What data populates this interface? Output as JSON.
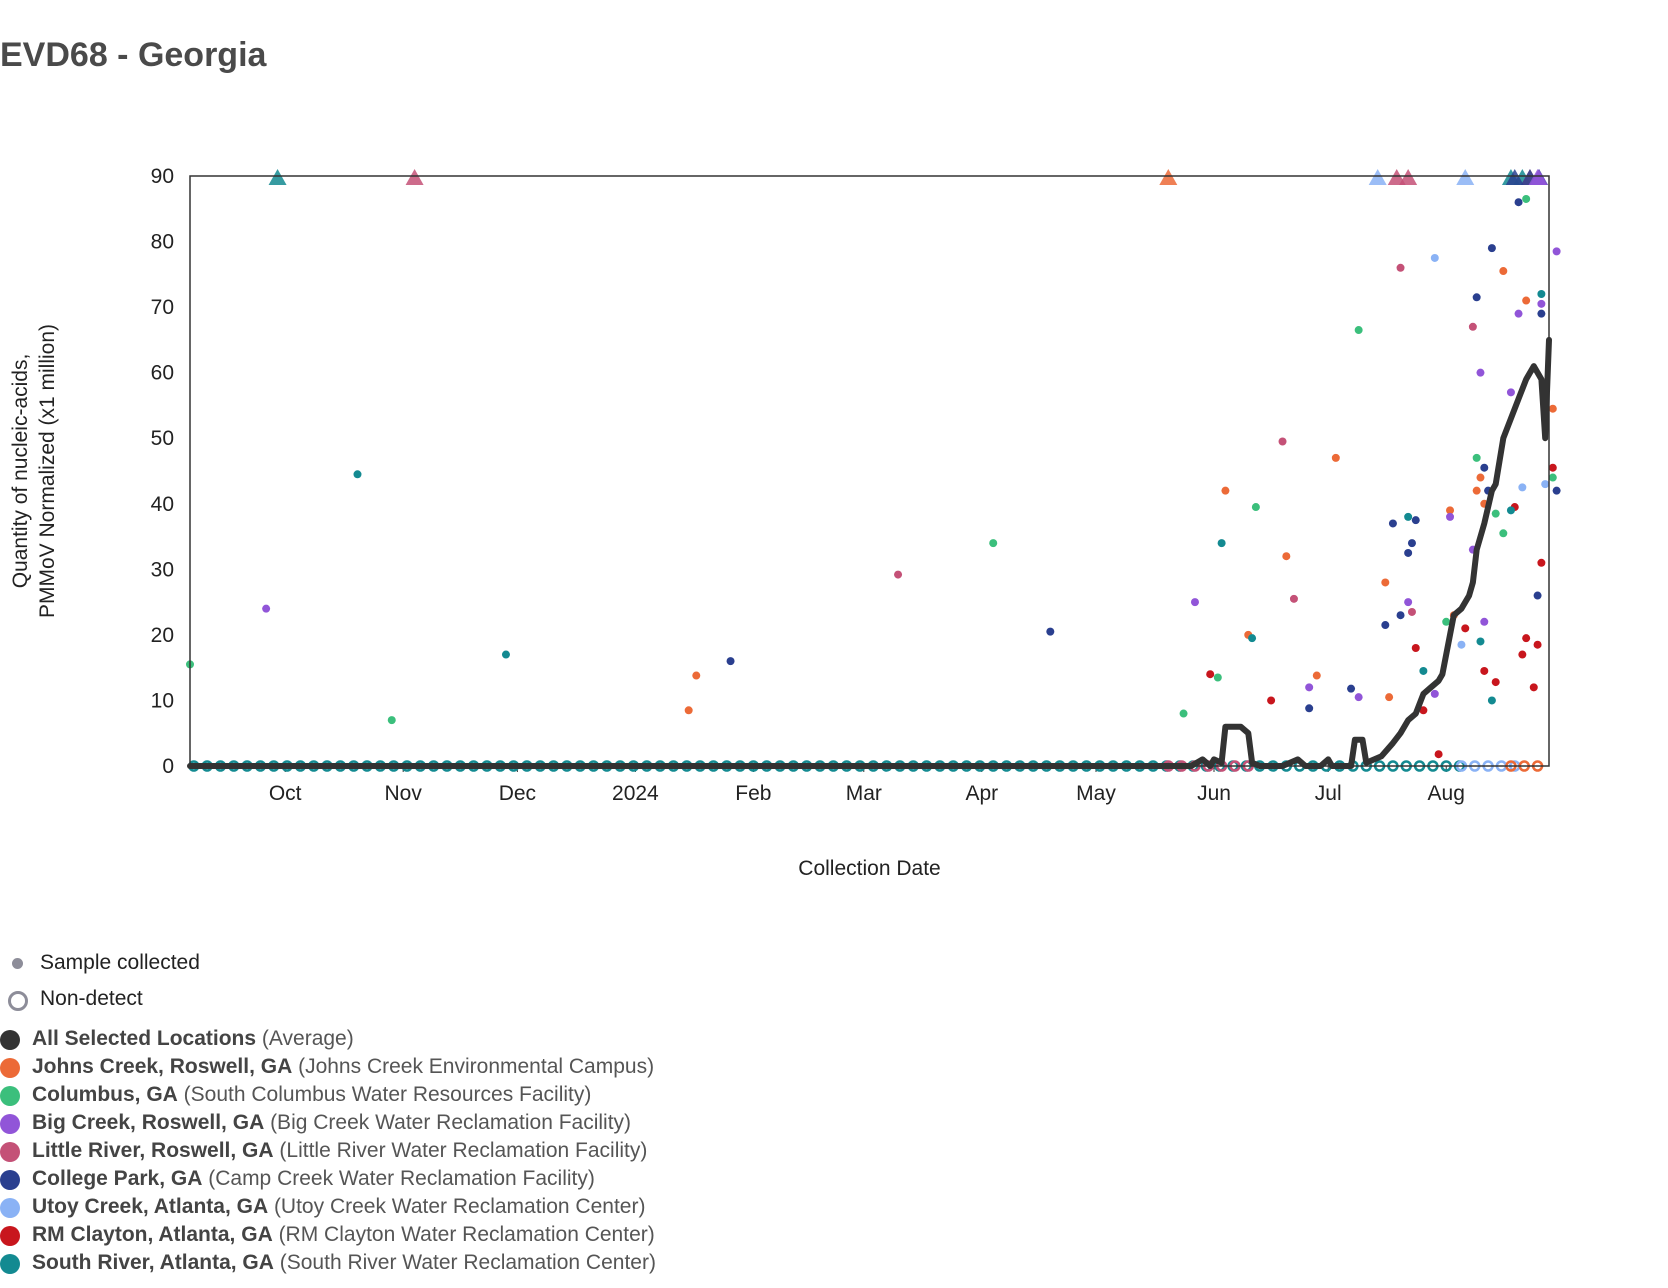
{
  "title": "EVD68 - Georgia",
  "legend_markers": [
    {
      "label": "Sample collected",
      "icon": "filled-dot-icon"
    },
    {
      "label": "Non-detect",
      "icon": "hollow-ring-icon"
    }
  ],
  "locations": [
    {
      "name": "All Selected Locations",
      "site": "(Average)",
      "color": "#333333"
    },
    {
      "name": "Johns Creek, Roswell, GA",
      "site": "(Johns Creek Environmental Campus)",
      "color": "#ec6a37"
    },
    {
      "name": "Columbus, GA",
      "site": "(South Columbus Water Resources Facility)",
      "color": "#3bbf7c"
    },
    {
      "name": "Big Creek, Roswell, GA",
      "site": "(Big Creek Water Reclamation Facility)",
      "color": "#9155d8"
    },
    {
      "name": "Little River, Roswell, GA",
      "site": "(Little River Water Reclamation Facility)",
      "color": "#c45177"
    },
    {
      "name": "College Park, GA",
      "site": "(Camp Creek Water Reclamation Facility)",
      "color": "#2a3f8f"
    },
    {
      "name": "Utoy Creek, Atlanta, GA",
      "site": "(Utoy Creek Water Reclamation Center)",
      "color": "#8ab2f5"
    },
    {
      "name": "RM Clayton, Atlanta, GA",
      "site": "(RM Clayton Water Reclamation Center)",
      "color": "#c8161d"
    },
    {
      "name": "South River, Atlanta, GA",
      "site": "(South River Water Reclamation Center)",
      "color": "#138a91"
    }
  ],
  "chart_data": {
    "type": "scatter",
    "title": "EVD68 - Georgia",
    "xlabel": "Collection Date",
    "ylabel": [
      "Quantity of nucleic-acids,",
      "PMMoV Normalized (x1 million)"
    ],
    "x_range": [
      "2023-09-06",
      "2024-08-28"
    ],
    "ylim": [
      0,
      90
    ],
    "y_ticks": [
      0,
      10,
      20,
      30,
      40,
      50,
      60,
      70,
      80,
      90
    ],
    "x_ticks": [
      {
        "label": "Oct",
        "date": "2023-10-01"
      },
      {
        "label": "Nov",
        "date": "2023-11-01"
      },
      {
        "label": "Dec",
        "date": "2023-12-01"
      },
      {
        "label": "2024",
        "date": "2024-01-01"
      },
      {
        "label": "Feb",
        "date": "2024-02-01"
      },
      {
        "label": "Mar",
        "date": "2024-03-01"
      },
      {
        "label": "Apr",
        "date": "2024-04-01"
      },
      {
        "label": "May",
        "date": "2024-05-01"
      },
      {
        "label": "Jun",
        "date": "2024-06-01"
      },
      {
        "label": "Jul",
        "date": "2024-07-01"
      },
      {
        "label": "Aug",
        "date": "2024-08-01"
      }
    ],
    "grid": false,
    "legend_position": "bottom-left",
    "average_line": {
      "name": "All Selected Locations",
      "color": "#333333",
      "points": [
        [
          "2023-09-06",
          0
        ],
        [
          "2024-05-26",
          0
        ],
        [
          "2024-05-29",
          1
        ],
        [
          "2024-05-31",
          0
        ],
        [
          "2024-06-01",
          1
        ],
        [
          "2024-06-03",
          0.5
        ],
        [
          "2024-06-04",
          6
        ],
        [
          "2024-06-08",
          6
        ],
        [
          "2024-06-10",
          5
        ],
        [
          "2024-06-11",
          0.5
        ],
        [
          "2024-06-13",
          0
        ],
        [
          "2024-06-19",
          0
        ],
        [
          "2024-06-23",
          1
        ],
        [
          "2024-06-25",
          0
        ],
        [
          "2024-06-29",
          0
        ],
        [
          "2024-07-01",
          1
        ],
        [
          "2024-07-02",
          0
        ],
        [
          "2024-07-07",
          0
        ],
        [
          "2024-07-08",
          4
        ],
        [
          "2024-07-10",
          4
        ],
        [
          "2024-07-11",
          0.5
        ],
        [
          "2024-07-15",
          1.5
        ],
        [
          "2024-07-18",
          3.5
        ],
        [
          "2024-07-20",
          5
        ],
        [
          "2024-07-22",
          7
        ],
        [
          "2024-07-24",
          8
        ],
        [
          "2024-07-26",
          11
        ],
        [
          "2024-07-28",
          12
        ],
        [
          "2024-07-30",
          13
        ],
        [
          "2024-07-31",
          14
        ],
        [
          "2024-08-03",
          23
        ],
        [
          "2024-08-05",
          24
        ],
        [
          "2024-08-07",
          26
        ],
        [
          "2024-08-08",
          28
        ],
        [
          "2024-08-09",
          33
        ],
        [
          "2024-08-11",
          37
        ],
        [
          "2024-08-13",
          42
        ],
        [
          "2024-08-14",
          43
        ],
        [
          "2024-08-16",
          50
        ],
        [
          "2024-08-18",
          53
        ],
        [
          "2024-08-20",
          56
        ],
        [
          "2024-08-22",
          59
        ],
        [
          "2024-08-24",
          61
        ],
        [
          "2024-08-26",
          59
        ],
        [
          "2024-08-27",
          50
        ],
        [
          "2024-08-28",
          65
        ]
      ]
    },
    "samples": [
      {
        "location": "Johns Creek, Roswell, GA",
        "points": [
          [
            "2024-01-15",
            8.5
          ],
          [
            "2024-01-17",
            13.8
          ],
          [
            "2024-06-04",
            42
          ],
          [
            "2024-06-10",
            20
          ],
          [
            "2024-06-20",
            32
          ],
          [
            "2024-06-28",
            13.8
          ],
          [
            "2024-07-03",
            47
          ],
          [
            "2024-07-16",
            28
          ],
          [
            "2024-07-17",
            10.5
          ],
          [
            "2024-08-02",
            39
          ],
          [
            "2024-08-03",
            23
          ],
          [
            "2024-08-09",
            42
          ],
          [
            "2024-08-10",
            44
          ],
          [
            "2024-08-11",
            40
          ],
          [
            "2024-08-16",
            75.5
          ],
          [
            "2024-08-22",
            71
          ],
          [
            "2024-08-29",
            54.5
          ]
        ]
      },
      {
        "location": "Columbus, GA",
        "points": [
          [
            "2023-09-06",
            15.5
          ],
          [
            "2023-10-29",
            7
          ],
          [
            "2024-04-04",
            34
          ],
          [
            "2024-05-24",
            8
          ],
          [
            "2024-06-02",
            13.5
          ],
          [
            "2024-06-12",
            39.5
          ],
          [
            "2024-07-09",
            66.5
          ],
          [
            "2024-08-01",
            22
          ],
          [
            "2024-08-09",
            47
          ],
          [
            "2024-08-14",
            38.5
          ],
          [
            "2024-08-16",
            35.5
          ],
          [
            "2024-08-22",
            86.5
          ],
          [
            "2024-08-29",
            44
          ]
        ]
      },
      {
        "location": "Big Creek, Roswell, GA",
        "points": [
          [
            "2023-09-26",
            24
          ],
          [
            "2024-05-27",
            25
          ],
          [
            "2024-06-26",
            12
          ],
          [
            "2024-07-09",
            10.5
          ],
          [
            "2024-07-22",
            25
          ],
          [
            "2024-07-29",
            11
          ],
          [
            "2024-08-02",
            38
          ],
          [
            "2024-08-08",
            33
          ],
          [
            "2024-08-10",
            60
          ],
          [
            "2024-08-11",
            22
          ],
          [
            "2024-08-18",
            57
          ],
          [
            "2024-08-20",
            69
          ],
          [
            "2024-08-26",
            70.5
          ],
          [
            "2024-08-30",
            78.5
          ]
        ]
      },
      {
        "location": "Little River, Roswell, GA",
        "points": [
          [
            "2024-03-10",
            29.2
          ],
          [
            "2024-06-19",
            49.5
          ],
          [
            "2024-06-22",
            25.5
          ],
          [
            "2024-07-20",
            76
          ],
          [
            "2024-07-23",
            23.5
          ],
          [
            "2024-08-08",
            67
          ]
        ]
      },
      {
        "location": "College Park, GA",
        "points": [
          [
            "2024-01-26",
            16
          ],
          [
            "2024-04-19",
            20.5
          ],
          [
            "2024-06-26",
            8.8
          ],
          [
            "2024-07-07",
            11.8
          ],
          [
            "2024-07-16",
            21.5
          ],
          [
            "2024-07-18",
            37
          ],
          [
            "2024-07-20",
            23
          ],
          [
            "2024-07-22",
            32.5
          ],
          [
            "2024-07-23",
            34
          ],
          [
            "2024-07-24",
            37.5
          ],
          [
            "2024-08-09",
            71.5
          ],
          [
            "2024-08-11",
            45.5
          ],
          [
            "2024-08-12",
            42
          ],
          [
            "2024-08-13",
            79
          ],
          [
            "2024-08-20",
            86
          ],
          [
            "2024-08-25",
            26
          ],
          [
            "2024-08-26",
            69
          ],
          [
            "2024-08-30",
            42
          ]
        ]
      },
      {
        "location": "Utoy Creek, Atlanta, GA",
        "points": [
          [
            "2024-07-29",
            77.5
          ],
          [
            "2024-08-05",
            18.5
          ],
          [
            "2024-08-21",
            42.5
          ],
          [
            "2024-08-27",
            43
          ]
        ]
      },
      {
        "location": "RM Clayton, Atlanta, GA",
        "points": [
          [
            "2024-05-31",
            14
          ],
          [
            "2024-06-16",
            10
          ],
          [
            "2024-07-24",
            18
          ],
          [
            "2024-07-26",
            8.5
          ],
          [
            "2024-07-30",
            1.8
          ],
          [
            "2024-08-06",
            21
          ],
          [
            "2024-08-11",
            14.5
          ],
          [
            "2024-08-14",
            12.8
          ],
          [
            "2024-08-19",
            39.5
          ],
          [
            "2024-08-21",
            17
          ],
          [
            "2024-08-22",
            19.5
          ],
          [
            "2024-08-24",
            12
          ],
          [
            "2024-08-25",
            18.5
          ],
          [
            "2024-08-26",
            31
          ],
          [
            "2024-08-29",
            45.5
          ]
        ]
      },
      {
        "location": "South River, Atlanta, GA",
        "points": [
          [
            "2023-10-20",
            44.5
          ],
          [
            "2023-11-28",
            17
          ],
          [
            "2024-06-03",
            34
          ],
          [
            "2024-06-11",
            19.5
          ],
          [
            "2024-07-22",
            38
          ],
          [
            "2024-07-26",
            14.5
          ],
          [
            "2024-08-10",
            19
          ],
          [
            "2024-08-13",
            10
          ],
          [
            "2024-08-18",
            39
          ],
          [
            "2024-08-26",
            72
          ]
        ]
      }
    ],
    "above_range_markers": [
      {
        "location": "South River, Atlanta, GA",
        "dates": [
          "2023-09-29",
          "2024-08-18",
          "2024-08-21",
          "2024-08-27",
          "2024-08-31"
        ]
      },
      {
        "location": "Little River, Roswell, GA",
        "dates": [
          "2023-11-04",
          "2024-07-19",
          "2024-07-22",
          "2024-08-23"
        ]
      },
      {
        "location": "Johns Creek, Roswell, GA",
        "dates": [
          "2024-05-20"
        ]
      },
      {
        "location": "Utoy Creek, Atlanta, GA",
        "dates": [
          "2024-07-14",
          "2024-08-06"
        ]
      },
      {
        "location": "College Park, GA",
        "dates": [
          "2024-08-19",
          "2024-08-23",
          "2024-08-29"
        ]
      },
      {
        "location": "Big Creek, Roswell, GA",
        "dates": [
          "2024-08-25",
          "2024-08-30"
        ]
      }
    ],
    "non_detect_markers": {
      "value": 0,
      "dates_by_location": [
        {
          "location": "South River, Atlanta, GA",
          "range": [
            "2023-09-07",
            "2024-08-06"
          ],
          "interval_days": 3.5
        },
        {
          "location": "Little River, Roswell, GA",
          "range": [
            "2024-05-20",
            "2024-06-10"
          ],
          "interval_days": 3.5
        },
        {
          "location": "Utoy Creek, Atlanta, GA",
          "range": [
            "2024-08-05",
            "2024-08-22"
          ],
          "interval_days": 3.5
        },
        {
          "location": "Johns Creek, Roswell, GA",
          "range": [
            "2024-08-18",
            "2024-08-27"
          ],
          "interval_days": 3.5
        }
      ]
    }
  }
}
